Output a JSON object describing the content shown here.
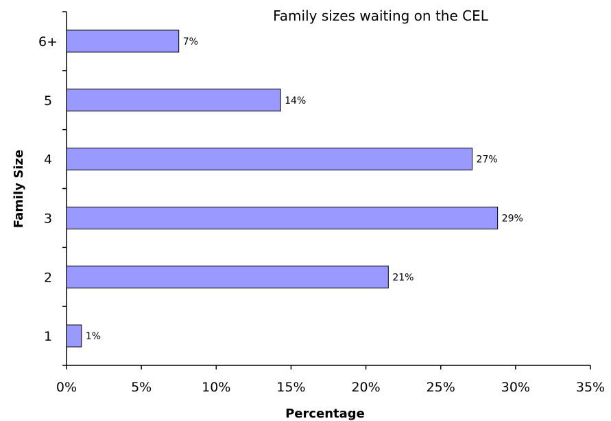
{
  "chart_data": {
    "type": "bar",
    "orientation": "horizontal",
    "title": "Family sizes waiting on the CEL",
    "xlabel": "Percentage",
    "ylabel": "Family Size",
    "categories": [
      "1",
      "2",
      "3",
      "4",
      "5",
      "6+"
    ],
    "values": [
      1,
      21.5,
      28.8,
      27.1,
      14.3,
      7.5
    ],
    "data_labels": [
      "1%",
      "21%",
      "29%",
      "27%",
      "14%",
      "7%"
    ],
    "xlim": [
      0,
      35
    ],
    "x_ticks": [
      0,
      5,
      10,
      15,
      20,
      25,
      30,
      35
    ],
    "x_tick_labels": [
      "0%",
      "5%",
      "10%",
      "15%",
      "20%",
      "25%",
      "30%",
      "35%"
    ],
    "grid": false,
    "legend": "none",
    "colors": {
      "bar_fill": "#9999ff",
      "bar_stroke": "#000000",
      "axis": "#000000"
    }
  }
}
